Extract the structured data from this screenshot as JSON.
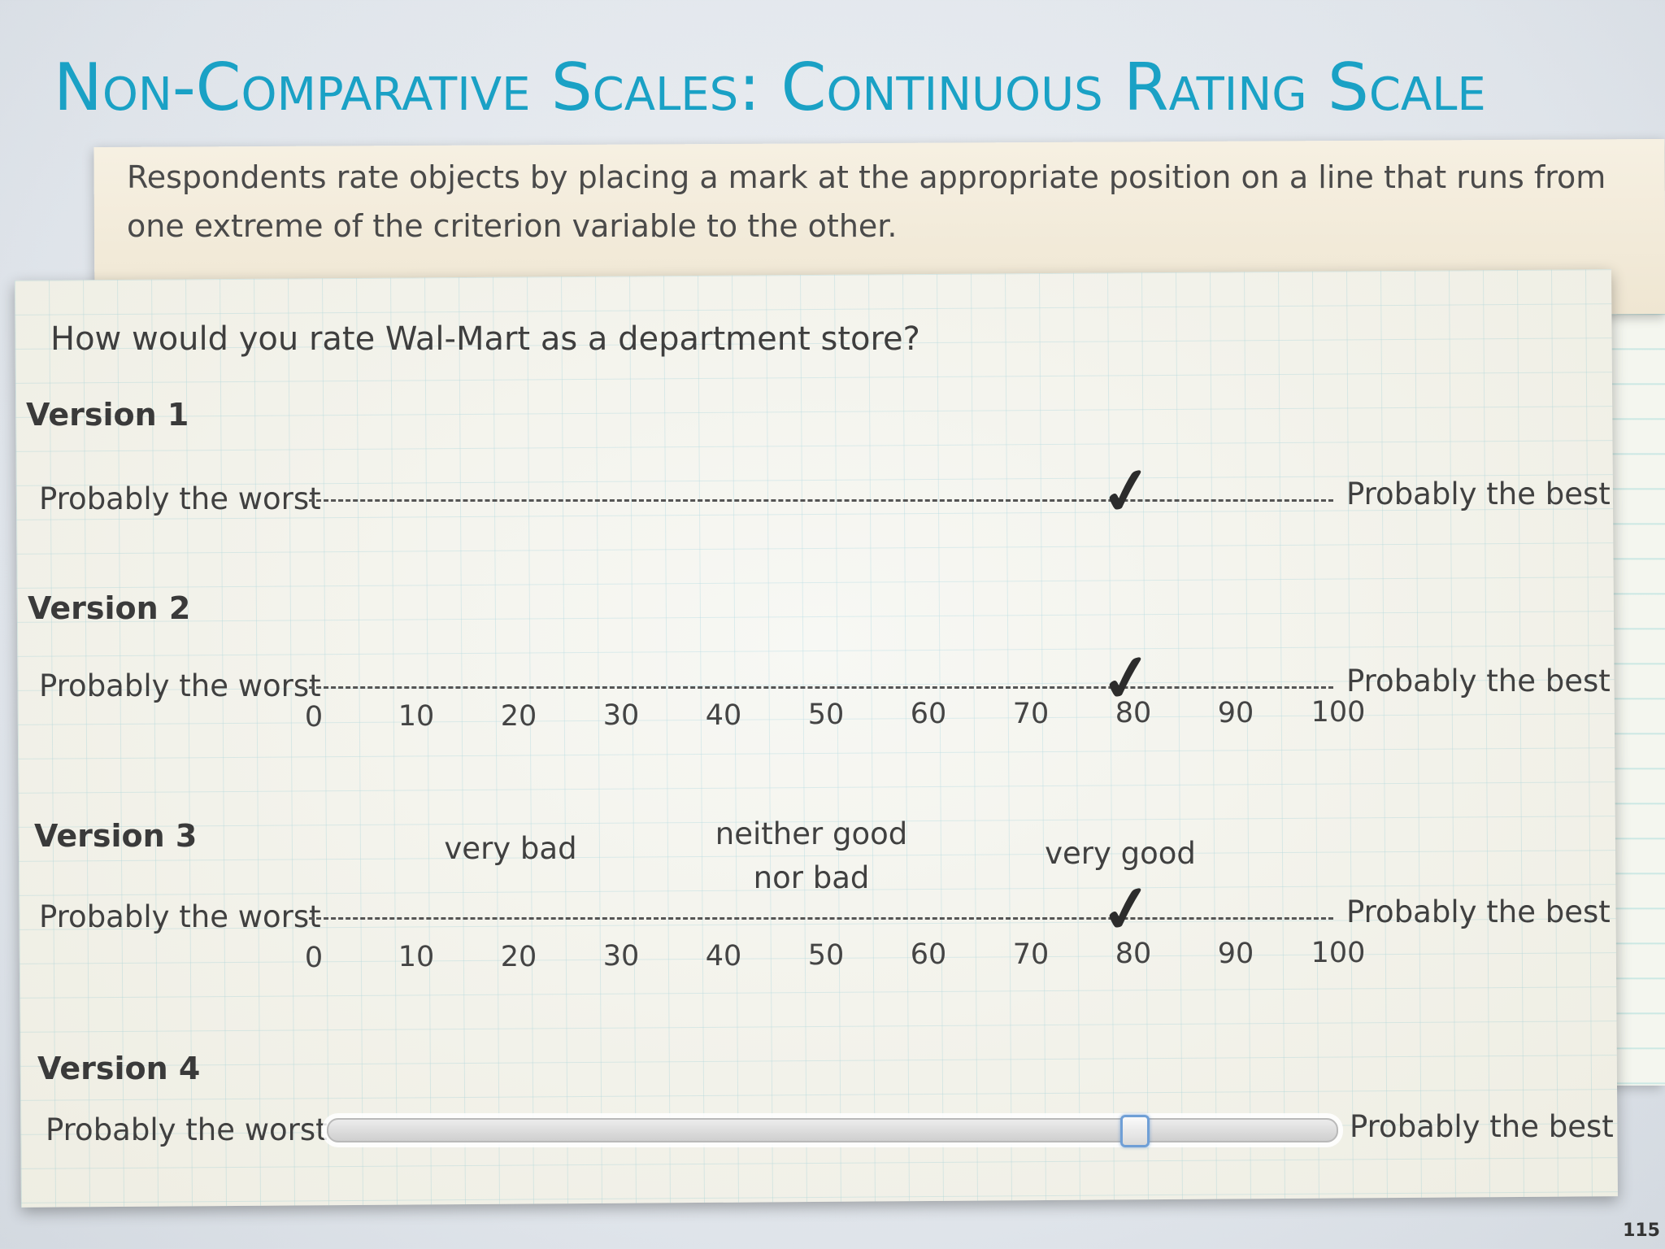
{
  "title": "Non-Comparative Scales: Continuous Rating Scale",
  "definition": "Respondents rate objects by placing a mark at the appropriate position on a line that runs from one extreme of the criterion variable to the other.",
  "question": "How would you rate Wal-Mart as a department store?",
  "versions": [
    {
      "label": "Version 1",
      "left": "Probably the worst",
      "right": "Probably the best"
    },
    {
      "label": "Version 2",
      "left": "Probably the worst",
      "right": "Probably the best"
    },
    {
      "label": "Version 3",
      "left": "Probably the worst",
      "right": "Probably the best"
    },
    {
      "label": "Version 4",
      "left": "Probably the worst",
      "right": "Probably the best"
    }
  ],
  "ticks": [
    "0",
    "10",
    "20",
    "30",
    "40",
    "50",
    "60",
    "70",
    "80",
    "90",
    "100"
  ],
  "anchors": {
    "very_bad": "very bad",
    "neither_1": "neither good",
    "neither_2": "nor bad",
    "very_good": "very good"
  },
  "check_glyph": "✓",
  "rating_value": 80,
  "page_number": "115"
}
